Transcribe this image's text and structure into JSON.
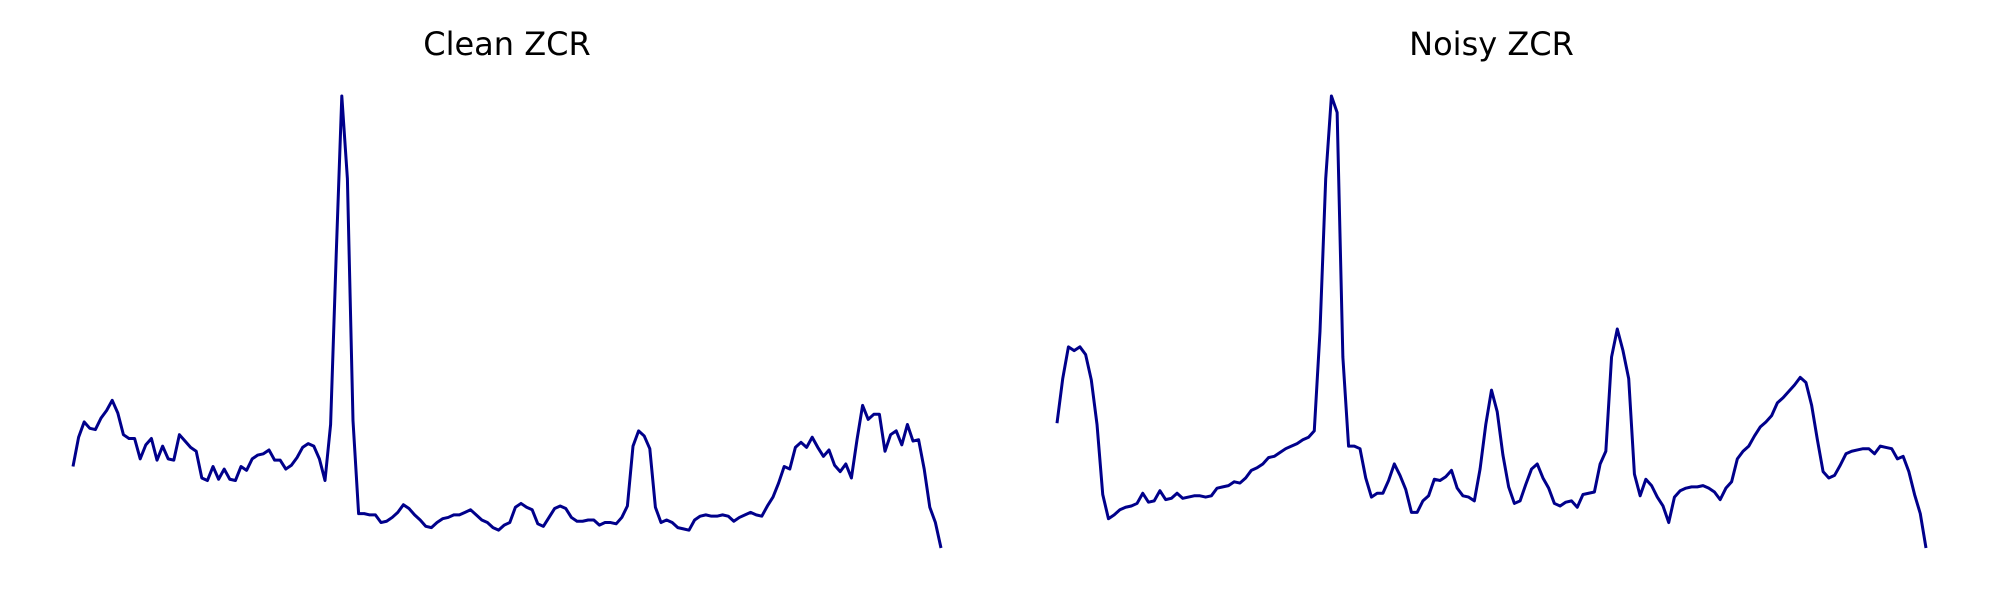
{
  "chart_data": [
    {
      "type": "line",
      "title": "Clean ZCR",
      "color": "#00008b",
      "ylim": [
        0,
        355
      ],
      "values": [
        64,
        87,
        99,
        94,
        93,
        102,
        108,
        116,
        106,
        89,
        86,
        86,
        70,
        81,
        86,
        69,
        80,
        70,
        69,
        89,
        84,
        79,
        76,
        55,
        53,
        64,
        54,
        62,
        54,
        53,
        64,
        61,
        70,
        73,
        74,
        77,
        69,
        69,
        62,
        65,
        71,
        79,
        82,
        80,
        70,
        53,
        97,
        230,
        355,
        290,
        100,
        27,
        27,
        26,
        26,
        20,
        21,
        24,
        28,
        34,
        31,
        26,
        22,
        17,
        16,
        20,
        23,
        24,
        26,
        26,
        28,
        30,
        26,
        22,
        20,
        16,
        14,
        18,
        20,
        32,
        35,
        32,
        30,
        19,
        17,
        24,
        31,
        33,
        31,
        24,
        21,
        21,
        22,
        22,
        18,
        20,
        20,
        19,
        24,
        33,
        80,
        92,
        88,
        78,
        32,
        20,
        22,
        20,
        16,
        15,
        14,
        22,
        25,
        26,
        25,
        25,
        26,
        25,
        21,
        24,
        26,
        28,
        26,
        25,
        33,
        40,
        51,
        64,
        62,
        79,
        83,
        79,
        87,
        79,
        72,
        77,
        65,
        60,
        66,
        55,
        85,
        112,
        101,
        105,
        105,
        76,
        89,
        92,
        81,
        97,
        84,
        85,
        62,
        32,
        20,
        0
      ]
    },
    {
      "type": "line",
      "title": "Noisy ZCR",
      "color": "#00008b",
      "ylim": [
        0,
        355
      ],
      "values": [
        98,
        133,
        158,
        155,
        158,
        152,
        132,
        97,
        42,
        23,
        26,
        30,
        32,
        33,
        35,
        43,
        36,
        37,
        45,
        38,
        39,
        43,
        39,
        40,
        41,
        41,
        40,
        41,
        47,
        48,
        49,
        52,
        51,
        55,
        61,
        63,
        66,
        71,
        72,
        75,
        78,
        80,
        82,
        85,
        87,
        92,
        170,
        290,
        355,
        342,
        150,
        80,
        80,
        78,
        55,
        40,
        43,
        43,
        53,
        66,
        57,
        46,
        28,
        28,
        37,
        41,
        54,
        53,
        56,
        61,
        47,
        41,
        40,
        37,
        62,
        97,
        124,
        107,
        73,
        48,
        35,
        37,
        50,
        62,
        66,
        55,
        47,
        35,
        33,
        36,
        37,
        32,
        42,
        43,
        44,
        66,
        76,
        150,
        172,
        155,
        133,
        58,
        41,
        54,
        49,
        40,
        33,
        20,
        40,
        45,
        47,
        48,
        48,
        49,
        47,
        44,
        38,
        47,
        52,
        70,
        76,
        80,
        88,
        95,
        99,
        104,
        114,
        118,
        123,
        128,
        134,
        130,
        112,
        85,
        60,
        55,
        57,
        65,
        74,
        76,
        77,
        78,
        78,
        74,
        80,
        79,
        78,
        70,
        72,
        60,
        42,
        27,
        0
      ]
    }
  ]
}
